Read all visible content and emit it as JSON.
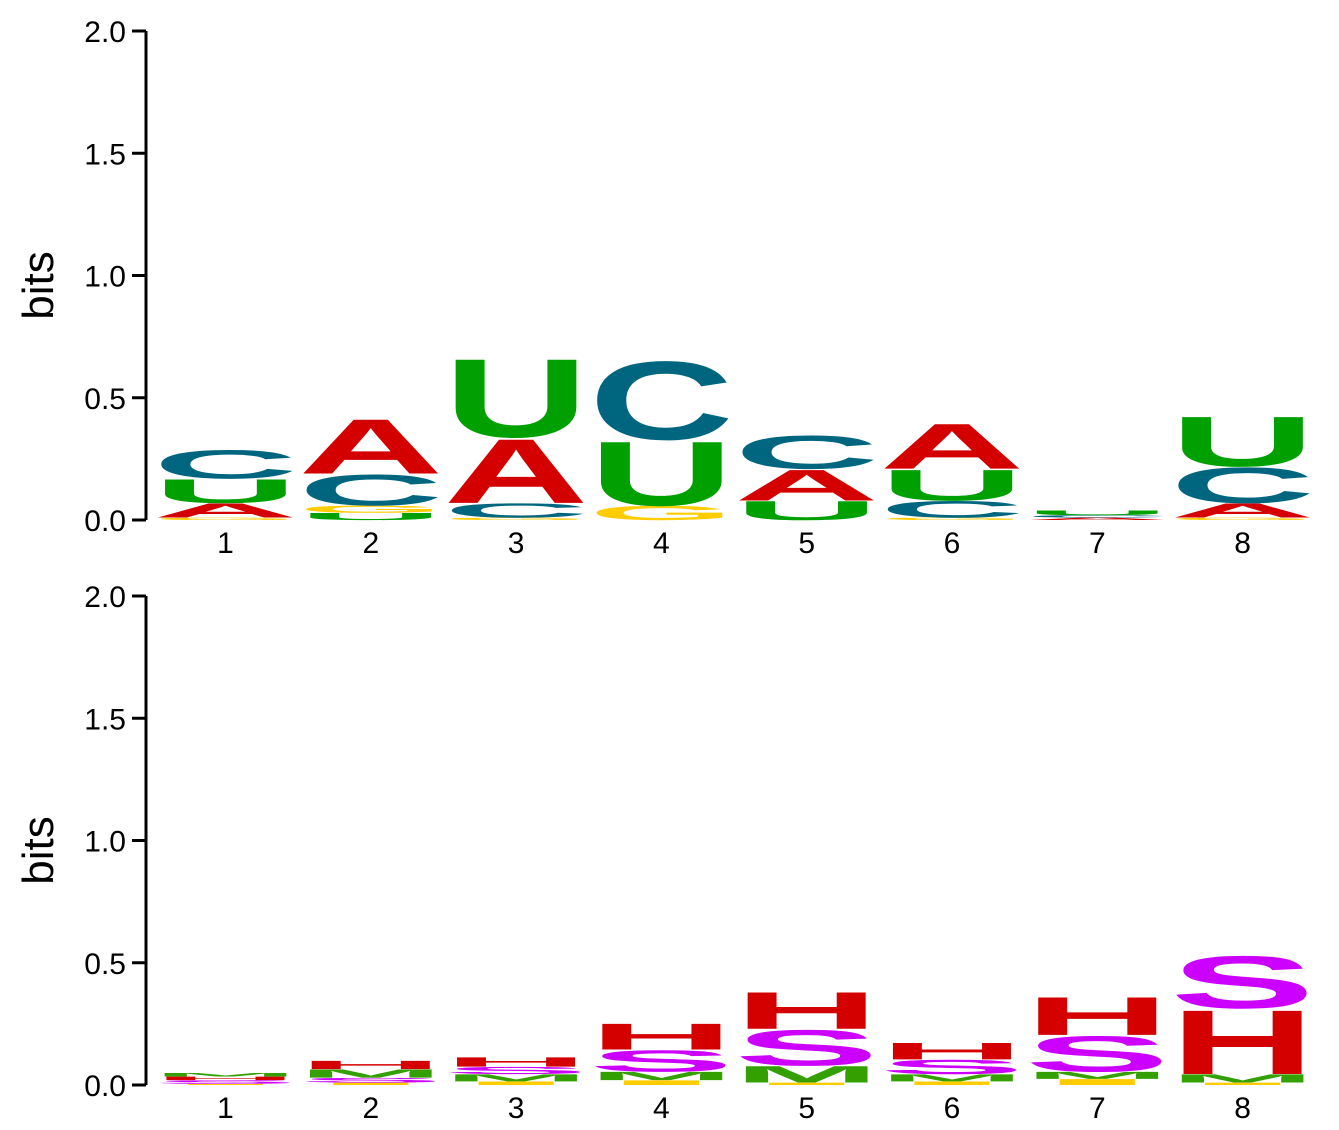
{
  "chart_data": [
    {
      "type": "sequence-logo",
      "ylabel": "bits",
      "ylim": [
        0,
        2.0
      ],
      "yticks": [
        "0.0",
        "0.5",
        "1.0",
        "1.5",
        "2.0"
      ],
      "positions": [
        "1",
        "2",
        "3",
        "4",
        "5",
        "6",
        "7",
        "8"
      ],
      "colors": {
        "A": "#d40000",
        "C": "#006680",
        "G": "#ffcc00",
        "U": "#00a000"
      },
      "stacks": [
        [
          {
            "letter": "G",
            "bits": 0.01
          },
          {
            "letter": "A",
            "bits": 0.06
          },
          {
            "letter": "U",
            "bits": 0.1
          },
          {
            "letter": "C",
            "bits": 0.12
          }
        ],
        [
          {
            "letter": "U",
            "bits": 0.03
          },
          {
            "letter": "G",
            "bits": 0.03
          },
          {
            "letter": "C",
            "bits": 0.13
          },
          {
            "letter": "A",
            "bits": 0.23
          }
        ],
        [
          {
            "letter": "G",
            "bits": 0.01
          },
          {
            "letter": "C",
            "bits": 0.06
          },
          {
            "letter": "A",
            "bits": 0.27
          },
          {
            "letter": "U",
            "bits": 0.33
          }
        ],
        [
          {
            "letter": "G",
            "bits": 0.06
          },
          {
            "letter": "U",
            "bits": 0.27
          },
          {
            "letter": "C",
            "bits": 0.33
          }
        ],
        [
          {
            "letter": "U",
            "bits": 0.08
          },
          {
            "letter": "A",
            "bits": 0.13
          },
          {
            "letter": "C",
            "bits": 0.14
          }
        ],
        [
          {
            "letter": "G",
            "bits": 0.01
          },
          {
            "letter": "C",
            "bits": 0.07
          },
          {
            "letter": "U",
            "bits": 0.13
          },
          {
            "letter": "A",
            "bits": 0.19
          }
        ],
        [
          {
            "letter": "A",
            "bits": 0.01
          },
          {
            "letter": "C",
            "bits": 0.01
          },
          {
            "letter": "U",
            "bits": 0.02
          }
        ],
        [
          {
            "letter": "G",
            "bits": 0.01
          },
          {
            "letter": "A",
            "bits": 0.06
          },
          {
            "letter": "C",
            "bits": 0.15
          },
          {
            "letter": "U",
            "bits": 0.21
          }
        ]
      ]
    },
    {
      "type": "sequence-logo",
      "ylabel": "bits",
      "ylim": [
        0,
        2.0
      ],
      "yticks": [
        "0.0",
        "0.5",
        "1.0",
        "1.5",
        "2.0"
      ],
      "positions": [
        "1",
        "2",
        "3",
        "4",
        "5",
        "6",
        "7",
        "8"
      ],
      "colors": {
        "H": "#d40000",
        "S": "#cc00ff",
        "M": "#33a000",
        "I": "#ffcc00"
      },
      "stacks": [
        [
          {
            "letter": "I",
            "bits": 0.005
          },
          {
            "letter": "S",
            "bits": 0.015
          },
          {
            "letter": "H",
            "bits": 0.015
          },
          {
            "letter": "M",
            "bits": 0.015
          }
        ],
        [
          {
            "letter": "I",
            "bits": 0.01
          },
          {
            "letter": "S",
            "bits": 0.02
          },
          {
            "letter": "M",
            "bits": 0.035
          },
          {
            "letter": "H",
            "bits": 0.035
          }
        ],
        [
          {
            "letter": "I",
            "bits": 0.015
          },
          {
            "letter": "M",
            "bits": 0.03
          },
          {
            "letter": "S",
            "bits": 0.03
          },
          {
            "letter": "H",
            "bits": 0.04
          }
        ],
        [
          {
            "letter": "I",
            "bits": 0.02
          },
          {
            "letter": "M",
            "bits": 0.035
          },
          {
            "letter": "S",
            "bits": 0.09
          },
          {
            "letter": "H",
            "bits": 0.11
          }
        ],
        [
          {
            "letter": "I",
            "bits": 0.01
          },
          {
            "letter": "M",
            "bits": 0.07
          },
          {
            "letter": "S",
            "bits": 0.15
          },
          {
            "letter": "H",
            "bits": 0.155
          }
        ],
        [
          {
            "letter": "I",
            "bits": 0.015
          },
          {
            "letter": "M",
            "bits": 0.03
          },
          {
            "letter": "S",
            "bits": 0.06
          },
          {
            "letter": "H",
            "bits": 0.07
          }
        ],
        [
          {
            "letter": "I",
            "bits": 0.025
          },
          {
            "letter": "M",
            "bits": 0.03
          },
          {
            "letter": "S",
            "bits": 0.15
          },
          {
            "letter": "H",
            "bits": 0.16
          }
        ],
        [
          {
            "letter": "I",
            "bits": 0.01
          },
          {
            "letter": "M",
            "bits": 0.035
          },
          {
            "letter": "H",
            "bits": 0.27
          },
          {
            "letter": "S",
            "bits": 0.22
          }
        ]
      ]
    }
  ]
}
